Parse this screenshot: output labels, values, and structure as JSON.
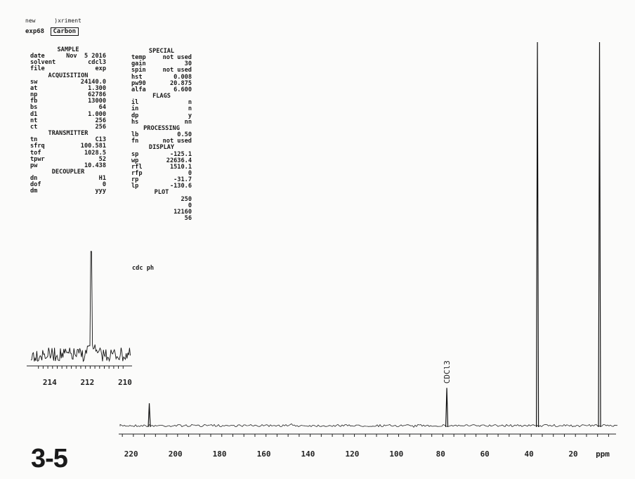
{
  "header": {
    "line1_left": "new",
    "line1_right": "xriment",
    "line2_left": "exp68",
    "line2_boxed": "Carbon"
  },
  "params_left": [
    {
      "section": "SAMPLE"
    },
    {
      "k": "date",
      "v": "Nov  5 2016"
    },
    {
      "k": "solvent",
      "v": "cdcl3"
    },
    {
      "k": "file",
      "v": "exp"
    },
    {
      "section": "ACQUISITION"
    },
    {
      "k": "sw",
      "v": "24140.0"
    },
    {
      "k": "at",
      "v": "1.300"
    },
    {
      "k": "np",
      "v": "62786"
    },
    {
      "k": "fb",
      "v": "13000"
    },
    {
      "k": "bs",
      "v": "64"
    },
    {
      "k": "d1",
      "v": "1.000"
    },
    {
      "k": "nt",
      "v": "256"
    },
    {
      "k": "ct",
      "v": "256"
    },
    {
      "section": "TRANSMITTER"
    },
    {
      "k": "tn",
      "v": "C13"
    },
    {
      "k": "sfrq",
      "v": "100.581"
    },
    {
      "k": "tof",
      "v": "1028.5"
    },
    {
      "k": "tpwr",
      "v": "52"
    },
    {
      "k": "pw",
      "v": "10.438"
    },
    {
      "section": "DECOUPLER"
    },
    {
      "k": "dn",
      "v": "H1"
    },
    {
      "k": "dof",
      "v": "0"
    },
    {
      "k": "dm",
      "v": "yyy"
    }
  ],
  "params_right": [
    {
      "section": "SPECIAL"
    },
    {
      "k": "temp",
      "v": "not used"
    },
    {
      "k": "gain",
      "v": "30"
    },
    {
      "k": "spin",
      "v": "not used"
    },
    {
      "k": "hst",
      "v": "0.008"
    },
    {
      "k": "pw90",
      "v": "20.875"
    },
    {
      "k": "alfa",
      "v": "6.600"
    },
    {
      "section": "FLAGS"
    },
    {
      "k": "il",
      "v": "n"
    },
    {
      "k": "in",
      "v": "n"
    },
    {
      "k": "dp",
      "v": "y"
    },
    {
      "k": "hs",
      "v": "nn"
    },
    {
      "section": "PROCESSING"
    },
    {
      "k": "lb",
      "v": "0.50"
    },
    {
      "k": "fn",
      "v": "not used"
    },
    {
      "section": "DISPLAY"
    },
    {
      "k": "sp",
      "v": "-125.1"
    },
    {
      "k": "wp",
      "v": "22636.4"
    },
    {
      "k": "rfl",
      "v": "1510.1"
    },
    {
      "k": "rfp",
      "v": "0"
    },
    {
      "k": "rp",
      "v": "-31.7"
    },
    {
      "k": "lp",
      "v": "-130.6"
    },
    {
      "section": "PLOT"
    },
    {
      "k": "",
      "v": "250"
    },
    {
      "k": "",
      "v": "0"
    },
    {
      "k": "",
      "v": "12160"
    },
    {
      "k": "",
      "v": "56"
    }
  ],
  "footer_code": "cdc  ph",
  "compound_label": "3-5",
  "chart_data": [
    {
      "type": "line",
      "title": "",
      "xlabel": "ppm",
      "axis_reversed": true,
      "xlim": [
        225,
        0
      ],
      "x_ticks": [
        220,
        200,
        180,
        160,
        140,
        120,
        100,
        80,
        60,
        40,
        20
      ],
      "peaks": [
        {
          "ppm": 211.8,
          "height": 0.06,
          "label": ""
        },
        {
          "ppm": 77.2,
          "height": 0.1,
          "label": "CDCl3"
        },
        {
          "ppm": 36.2,
          "height": 1.0,
          "label": ""
        },
        {
          "ppm": 8.1,
          "height": 1.0,
          "label": ""
        }
      ]
    },
    {
      "type": "line",
      "title": "",
      "xlabel": "",
      "inset": true,
      "axis_reversed": true,
      "xlim": [
        215,
        209.7
      ],
      "x_ticks": [
        214,
        212,
        210
      ],
      "peaks": [
        {
          "ppm": 211.8,
          "height": 1.0,
          "label": ""
        }
      ]
    }
  ]
}
